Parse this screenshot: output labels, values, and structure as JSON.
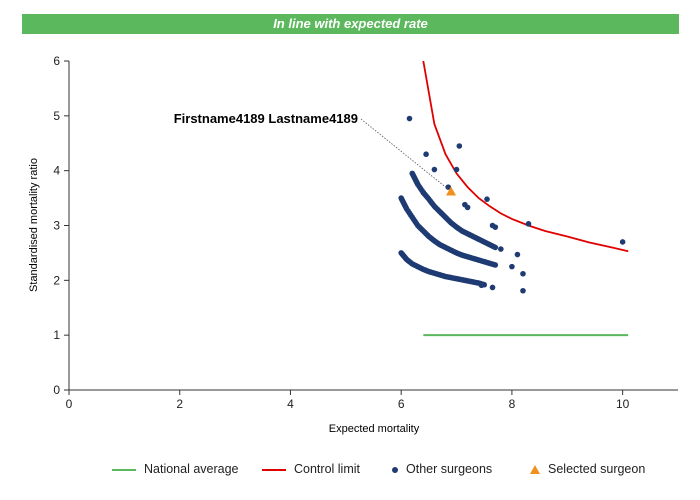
{
  "banner": {
    "text": "In line with expected rate",
    "color": "#5cb85c"
  },
  "chart_data": {
    "type": "scatter",
    "xlabel": "Expected mortality",
    "ylabel": "Standardised mortality ratio",
    "xlim": [
      0,
      11
    ],
    "ylim": [
      0,
      6
    ],
    "xticks": [
      0,
      2,
      4,
      6,
      8,
      10
    ],
    "yticks": [
      0,
      1,
      2,
      3,
      4,
      5,
      6
    ],
    "grid": false,
    "legend_position": "bottom",
    "series": [
      {
        "name": "National average",
        "kind": "line",
        "color": "#5cb85c",
        "x": [
          6.4,
          10.1
        ],
        "y": [
          1,
          1
        ]
      },
      {
        "name": "Control limit",
        "kind": "curve",
        "color": "#e00000",
        "x": [
          6.4,
          6.6,
          6.8,
          7.0,
          7.2,
          7.4,
          7.6,
          7.8,
          8.0,
          8.3,
          8.6,
          9.0,
          9.4,
          9.8,
          10.1
        ],
        "y": [
          6.0,
          4.85,
          4.3,
          3.95,
          3.7,
          3.5,
          3.35,
          3.22,
          3.12,
          3.0,
          2.9,
          2.8,
          2.69,
          2.6,
          2.53
        ]
      },
      {
        "name": "Other surgeons",
        "kind": "points",
        "color": "#1f3b73",
        "bands": [
          {
            "x": [
              6.0,
              6.05,
              6.1,
              6.2,
              6.3,
              6.4,
              6.5,
              6.6,
              6.7,
              6.8,
              6.9,
              7.0,
              7.1,
              7.2,
              7.3,
              7.4,
              7.5
            ],
            "y": [
              2.5,
              2.44,
              2.38,
              2.3,
              2.25,
              2.2,
              2.16,
              2.13,
              2.1,
              2.07,
              2.05,
              2.03,
              2.01,
              1.99,
              1.97,
              1.95,
              1.92
            ]
          },
          {
            "x": [
              6.0,
              6.05,
              6.1,
              6.2,
              6.3,
              6.4,
              6.5,
              6.6,
              6.7,
              6.8,
              6.9,
              7.0,
              7.1,
              7.2,
              7.3,
              7.4,
              7.5,
              7.6,
              7.7
            ],
            "y": [
              3.5,
              3.4,
              3.3,
              3.15,
              3.0,
              2.9,
              2.8,
              2.72,
              2.65,
              2.6,
              2.55,
              2.5,
              2.46,
              2.43,
              2.4,
              2.37,
              2.34,
              2.31,
              2.28
            ]
          },
          {
            "x": [
              6.2,
              6.25,
              6.3,
              6.4,
              6.5,
              6.6,
              6.7,
              6.8,
              6.9,
              7.0,
              7.1,
              7.2,
              7.3,
              7.4,
              7.5,
              7.6,
              7.7
            ],
            "y": [
              3.95,
              3.85,
              3.75,
              3.6,
              3.48,
              3.35,
              3.25,
              3.15,
              3.05,
              2.97,
              2.9,
              2.85,
              2.8,
              2.75,
              2.7,
              2.65,
              2.6
            ]
          }
        ],
        "points": [
          {
            "x": 6.15,
            "y": 4.95
          },
          {
            "x": 6.45,
            "y": 4.3
          },
          {
            "x": 6.6,
            "y": 4.02
          },
          {
            "x": 7.05,
            "y": 4.45
          },
          {
            "x": 7.0,
            "y": 4.02
          },
          {
            "x": 6.4,
            "y": 3.6
          },
          {
            "x": 6.85,
            "y": 3.7
          },
          {
            "x": 7.15,
            "y": 3.38
          },
          {
            "x": 7.2,
            "y": 3.33
          },
          {
            "x": 7.55,
            "y": 3.48
          },
          {
            "x": 7.65,
            "y": 3.0
          },
          {
            "x": 7.7,
            "y": 2.97
          },
          {
            "x": 7.8,
            "y": 2.57
          },
          {
            "x": 8.1,
            "y": 2.47
          },
          {
            "x": 8.2,
            "y": 2.12
          },
          {
            "x": 8.2,
            "y": 1.81
          },
          {
            "x": 8.3,
            "y": 3.03
          },
          {
            "x": 7.65,
            "y": 1.87
          },
          {
            "x": 7.45,
            "y": 1.91
          },
          {
            "x": 8.0,
            "y": 2.25
          },
          {
            "x": 10.0,
            "y": 2.7
          }
        ]
      },
      {
        "name": "Selected surgeon",
        "kind": "marker",
        "color": "#f0901e",
        "x": [
          6.9
        ],
        "y": [
          3.62
        ]
      }
    ],
    "annotations": [
      {
        "text": "Firstname4189 Lastname4189",
        "target_x": 6.9,
        "target_y": 3.62
      }
    ]
  }
}
